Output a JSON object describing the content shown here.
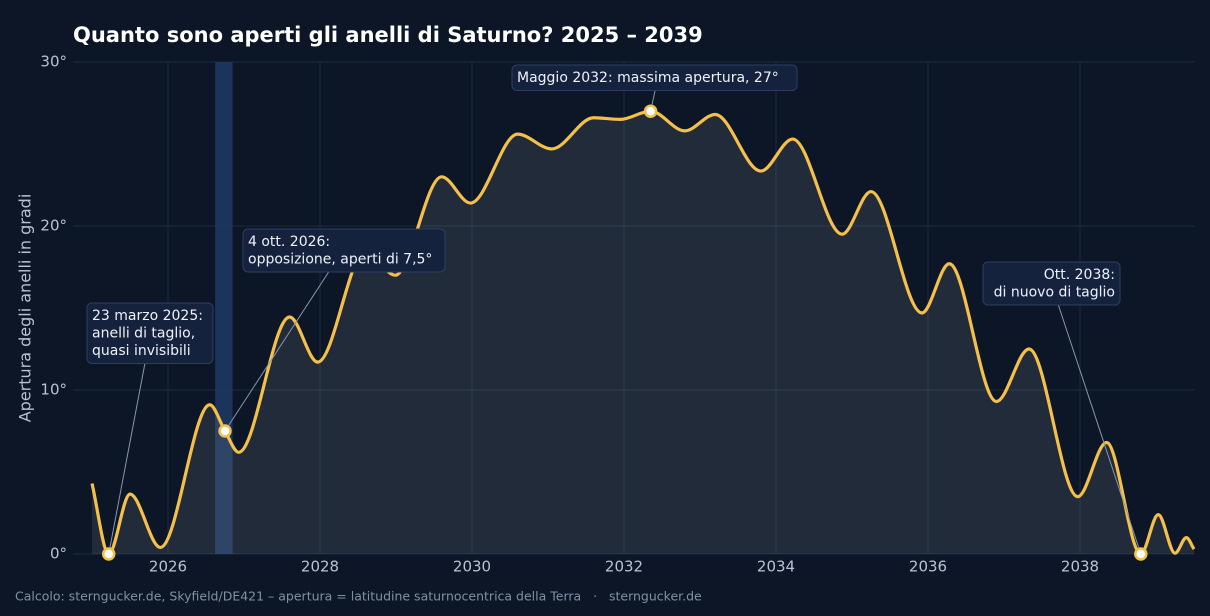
{
  "chart_data": {
    "type": "line",
    "title": "Quanto sono aperti gli anelli di Saturno? 2025 – 2039",
    "y_label": "Apertura degli anelli in gradi",
    "footer": "Calcolo: sterngucker.de, Skyfield/DE421 – apertura = latitudine saturnocentrica della Terra   ·   sterngucker.de",
    "xlim": [
      2024.75,
      2039.5
    ],
    "ylim": [
      0,
      30
    ],
    "xticks": [
      2026,
      2028,
      2030,
      2032,
      2034,
      2036,
      2038
    ],
    "yticks": [
      {
        "value": 0,
        "label": "0°"
      },
      {
        "value": 10,
        "label": "10°"
      },
      {
        "value": 20,
        "label": "20°"
      },
      {
        "value": 30,
        "label": "30°"
      }
    ],
    "grid": true,
    "highlight_x": [
      2026.62,
      2026.85
    ],
    "series": [
      {
        "color": "#f5c04a",
        "x": [
          2025.0,
          2025.22,
          2025.5,
          2025.9,
          2026.55,
          2026.75,
          2026.93,
          2027.6,
          2027.97,
          2028.6,
          2028.99,
          2029.6,
          2029.98,
          2030.6,
          2031.05,
          2031.6,
          2031.95,
          2032.35,
          2032.8,
          2033.2,
          2033.8,
          2034.22,
          2034.87,
          2035.25,
          2035.92,
          2036.28,
          2036.9,
          2037.33,
          2037.97,
          2038.35,
          2038.8,
          2039.03,
          2039.25,
          2039.4,
          2039.5
        ],
        "values": [
          4.3,
          0,
          3.65,
          0.4,
          9.1,
          7.5,
          6.2,
          14.45,
          11.7,
          18.5,
          17.0,
          23.0,
          21.4,
          25.6,
          24.7,
          26.6,
          26.5,
          27,
          25.8,
          26.8,
          23.35,
          25.3,
          19.5,
          22.1,
          14.7,
          17.7,
          9.3,
          12.5,
          3.5,
          6.8,
          0,
          2.4,
          0.05,
          1.0,
          0.3
        ]
      }
    ],
    "annotations": [
      {
        "lines": [
          "23 marzo 2025:",
          "anelli di taglio,",
          "quasi invisibili"
        ],
        "x": 2025.22,
        "y": 0
      },
      {
        "lines": [
          "4 ott. 2026:",
          "opposizione, aperti di 7,5°"
        ],
        "x": 2026.75,
        "y": 7.5
      },
      {
        "lines": [
          "Maggio 2032: massima apertura, 27°"
        ],
        "x": 2032.35,
        "y": 27
      },
      {
        "lines": [
          "Ott. 2038:",
          "di nuovo di taglio"
        ],
        "x": 2038.8,
        "y": 0
      }
    ]
  }
}
